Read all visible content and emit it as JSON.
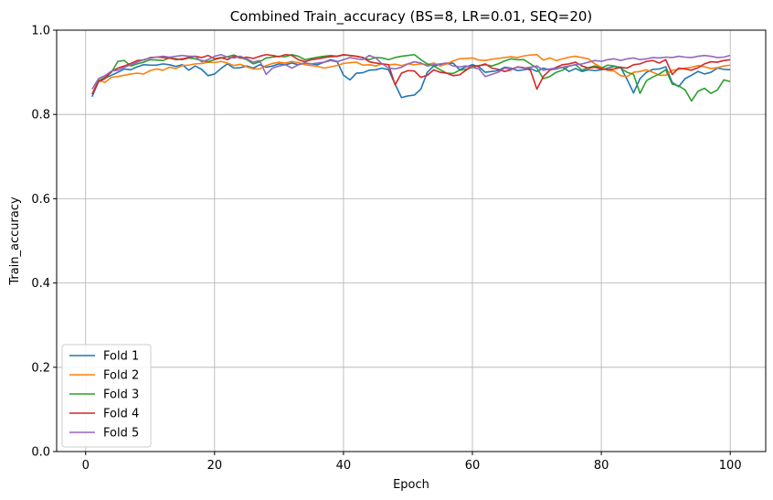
{
  "chart_data": {
    "type": "line",
    "title": "Combined Train_accuracy (BS=8, LR=0.01, SEQ=20)",
    "xlabel": "Epoch",
    "ylabel": "Train_accuracy",
    "xlim": [
      -4.5,
      105.5
    ],
    "ylim": [
      0.0,
      1.0
    ],
    "xticks": [
      0,
      20,
      40,
      60,
      80,
      100
    ],
    "yticks": [
      0.0,
      0.2,
      0.4,
      0.6,
      0.8,
      1.0
    ],
    "xtick_labels": [
      "0",
      "20",
      "40",
      "60",
      "80",
      "100"
    ],
    "ytick_labels": [
      "0.0",
      "0.2",
      "0.4",
      "0.6",
      "0.8",
      "1.0"
    ],
    "grid": true,
    "legend_position": "lower-left",
    "x_start": 1,
    "series": [
      {
        "name": "Fold 1",
        "color": "#1f77b4",
        "values": [
          0.842,
          0.878,
          0.886,
          0.893,
          0.9,
          0.908,
          0.906,
          0.913,
          0.918,
          0.917,
          0.917,
          0.92,
          0.918,
          0.914,
          0.918,
          0.905,
          0.915,
          0.907,
          0.892,
          0.896,
          0.909,
          0.92,
          0.91,
          0.911,
          0.915,
          0.91,
          0.918,
          0.912,
          0.915,
          0.92,
          0.918,
          0.922,
          0.918,
          0.922,
          0.92,
          0.918,
          0.924,
          0.93,
          0.926,
          0.893,
          0.882,
          0.898,
          0.899,
          0.905,
          0.906,
          0.91,
          0.906,
          0.872,
          0.84,
          0.844,
          0.846,
          0.86,
          0.9,
          0.915,
          0.918,
          0.92,
          0.922,
          0.906,
          0.913,
          0.918,
          0.913,
          0.9,
          0.902,
          0.904,
          0.912,
          0.91,
          0.904,
          0.906,
          0.909,
          0.902,
          0.91,
          0.906,
          0.908,
          0.912,
          0.902,
          0.909,
          0.902,
          0.906,
          0.904,
          0.906,
          0.91,
          0.914,
          0.912,
          0.883,
          0.851,
          0.885,
          0.9,
          0.907,
          0.908,
          0.913,
          0.876,
          0.866,
          0.885,
          0.893,
          0.902,
          0.896,
          0.9,
          0.91,
          0.907,
          0.906
        ]
      },
      {
        "name": "Fold 2",
        "color": "#ff7f0e",
        "values": [
          0.848,
          0.881,
          0.876,
          0.888,
          0.89,
          0.893,
          0.896,
          0.898,
          0.896,
          0.904,
          0.908,
          0.905,
          0.912,
          0.909,
          0.916,
          0.917,
          0.92,
          0.921,
          0.924,
          0.923,
          0.926,
          0.922,
          0.916,
          0.919,
          0.913,
          0.908,
          0.908,
          0.916,
          0.921,
          0.924,
          0.922,
          0.926,
          0.923,
          0.918,
          0.916,
          0.914,
          0.91,
          0.913,
          0.916,
          0.921,
          0.923,
          0.924,
          0.917,
          0.918,
          0.915,
          0.92,
          0.918,
          0.919,
          0.916,
          0.92,
          0.918,
          0.92,
          0.918,
          0.922,
          0.915,
          0.92,
          0.927,
          0.932,
          0.933,
          0.934,
          0.929,
          0.928,
          0.931,
          0.933,
          0.935,
          0.937,
          0.935,
          0.939,
          0.941,
          0.942,
          0.929,
          0.934,
          0.928,
          0.932,
          0.936,
          0.938,
          0.935,
          0.932,
          0.92,
          0.912,
          0.905,
          0.903,
          0.892,
          0.89,
          0.9,
          0.902,
          0.906,
          0.9,
          0.893,
          0.893,
          0.905,
          0.907,
          0.91,
          0.912,
          0.916,
          0.913,
          0.909,
          0.911,
          0.915,
          0.917
        ]
      },
      {
        "name": "Fold 3",
        "color": "#2ca02c",
        "values": [
          0.848,
          0.88,
          0.888,
          0.9,
          0.926,
          0.928,
          0.915,
          0.92,
          0.924,
          0.93,
          0.929,
          0.928,
          0.934,
          0.932,
          0.93,
          0.934,
          0.932,
          0.928,
          0.925,
          0.93,
          0.934,
          0.937,
          0.941,
          0.935,
          0.93,
          0.92,
          0.925,
          0.934,
          0.936,
          0.938,
          0.937,
          0.942,
          0.938,
          0.93,
          0.933,
          0.936,
          0.938,
          0.94,
          0.938,
          0.941,
          0.94,
          0.938,
          0.935,
          0.93,
          0.935,
          0.934,
          0.93,
          0.935,
          0.938,
          0.94,
          0.942,
          0.93,
          0.92,
          0.915,
          0.906,
          0.898,
          0.897,
          0.905,
          0.907,
          0.912,
          0.916,
          0.918,
          0.915,
          0.92,
          0.927,
          0.932,
          0.93,
          0.93,
          0.92,
          0.91,
          0.885,
          0.89,
          0.9,
          0.905,
          0.915,
          0.918,
          0.905,
          0.911,
          0.915,
          0.91,
          0.917,
          0.915,
          0.91,
          0.9,
          0.895,
          0.85,
          0.88,
          0.889,
          0.896,
          0.906,
          0.872,
          0.868,
          0.858,
          0.832,
          0.855,
          0.862,
          0.85,
          0.858,
          0.882,
          0.878
        ]
      },
      {
        "name": "Fold 4",
        "color": "#d62728",
        "values": [
          0.848,
          0.878,
          0.885,
          0.902,
          0.91,
          0.915,
          0.921,
          0.928,
          0.929,
          0.935,
          0.936,
          0.935,
          0.934,
          0.93,
          0.932,
          0.935,
          0.938,
          0.935,
          0.94,
          0.932,
          0.935,
          0.93,
          0.938,
          0.934,
          0.936,
          0.933,
          0.938,
          0.942,
          0.94,
          0.937,
          0.942,
          0.94,
          0.93,
          0.925,
          0.93,
          0.932,
          0.935,
          0.937,
          0.938,
          0.942,
          0.94,
          0.938,
          0.935,
          0.925,
          0.922,
          0.92,
          0.918,
          0.87,
          0.898,
          0.904,
          0.903,
          0.888,
          0.893,
          0.906,
          0.9,
          0.898,
          0.892,
          0.894,
          0.905,
          0.916,
          0.915,
          0.92,
          0.91,
          0.907,
          0.902,
          0.906,
          0.913,
          0.911,
          0.905,
          0.86,
          0.89,
          0.905,
          0.912,
          0.918,
          0.92,
          0.924,
          0.915,
          0.91,
          0.912,
          0.908,
          0.906,
          0.908,
          0.912,
          0.91,
          0.918,
          0.92,
          0.926,
          0.928,
          0.922,
          0.93,
          0.895,
          0.91,
          0.908,
          0.905,
          0.911,
          0.92,
          0.925,
          0.924,
          0.928,
          0.93
        ]
      },
      {
        "name": "Fold 5",
        "color": "#9467bd",
        "values": [
          0.86,
          0.885,
          0.892,
          0.903,
          0.905,
          0.912,
          0.918,
          0.924,
          0.93,
          0.934,
          0.936,
          0.938,
          0.936,
          0.938,
          0.94,
          0.938,
          0.938,
          0.925,
          0.93,
          0.938,
          0.942,
          0.936,
          0.934,
          0.938,
          0.932,
          0.924,
          0.928,
          0.895,
          0.91,
          0.915,
          0.918,
          0.91,
          0.918,
          0.922,
          0.92,
          0.922,
          0.924,
          0.928,
          0.925,
          0.93,
          0.935,
          0.932,
          0.93,
          0.94,
          0.934,
          0.92,
          0.91,
          0.908,
          0.912,
          0.92,
          0.925,
          0.922,
          0.915,
          0.918,
          0.92,
          0.922,
          0.915,
          0.913,
          0.915,
          0.912,
          0.908,
          0.89,
          0.895,
          0.9,
          0.91,
          0.908,
          0.912,
          0.91,
          0.912,
          0.915,
          0.905,
          0.908,
          0.91,
          0.912,
          0.915,
          0.918,
          0.92,
          0.924,
          0.928,
          0.926,
          0.93,
          0.932,
          0.928,
          0.932,
          0.934,
          0.93,
          0.932,
          0.935,
          0.934,
          0.936,
          0.935,
          0.938,
          0.936,
          0.935,
          0.938,
          0.94,
          0.938,
          0.935,
          0.936,
          0.94
        ]
      }
    ]
  }
}
